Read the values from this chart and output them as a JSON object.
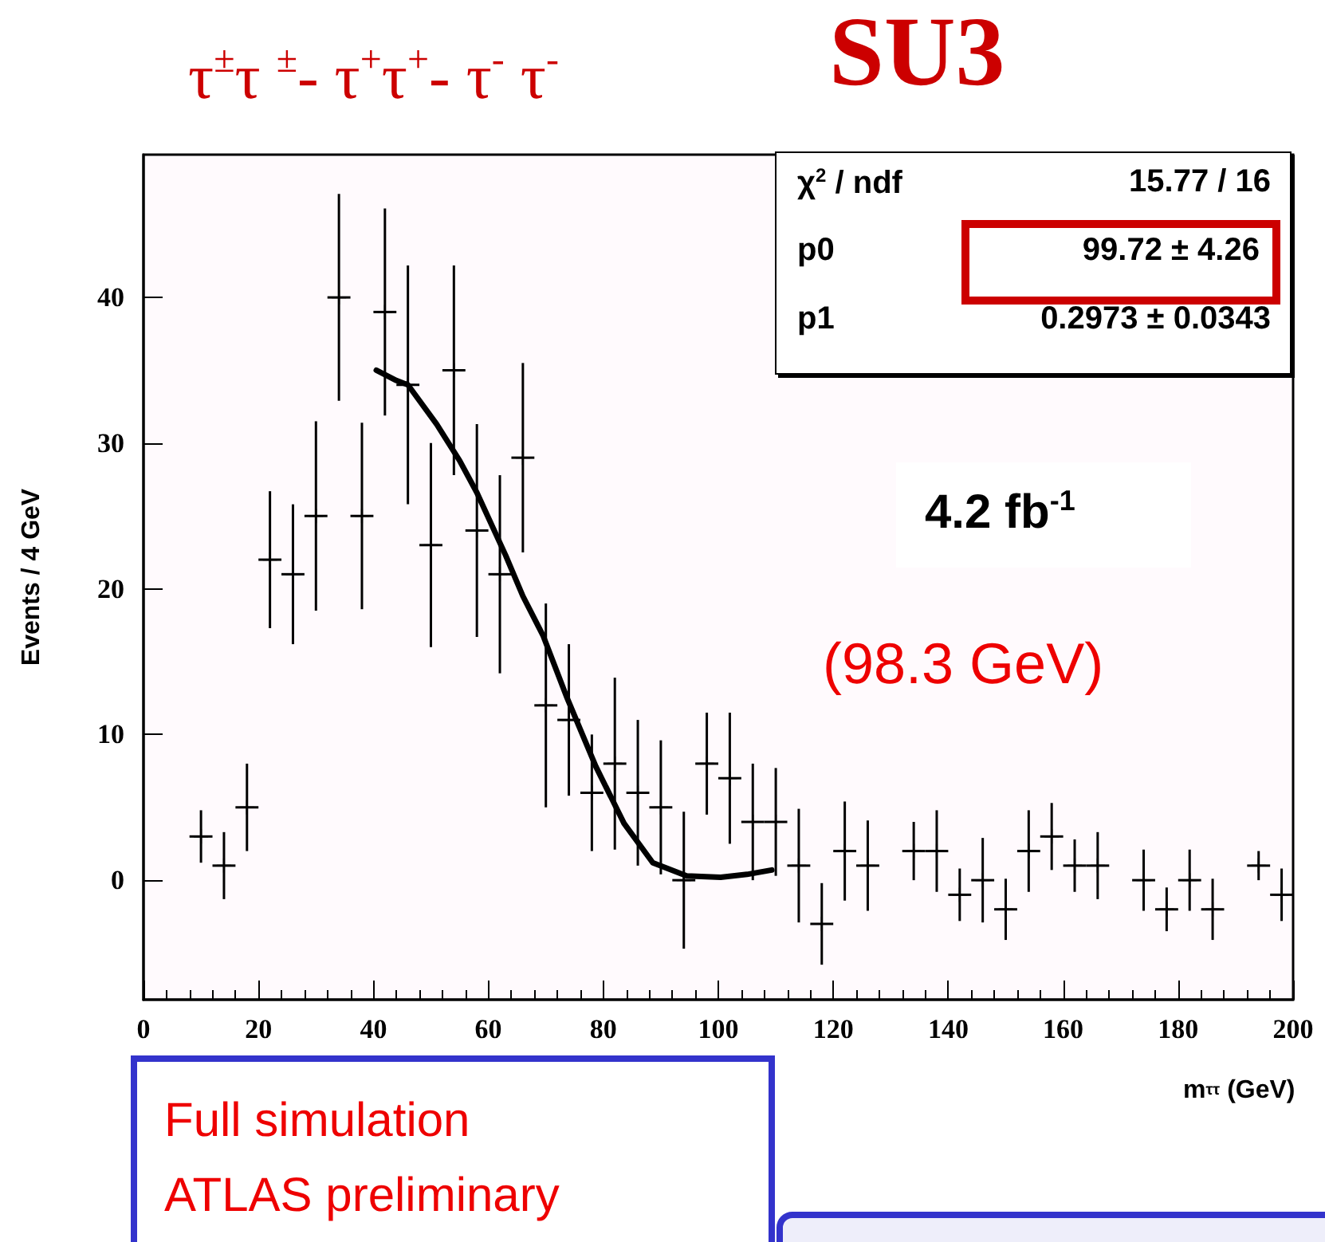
{
  "chart_data": {
    "type": "scatter",
    "title": "τ$^{±}$τ $^{±}$- τ$^{+}$τ$^{+}$- τ$^{-}$ τ$^{-}$",
    "xlabel": "m$_{ττ}$ (GeV)",
    "ylabel": "Events / 4 GeV",
    "xlim": [
      0,
      200
    ],
    "xticks": [
      0,
      20,
      40,
      60,
      80,
      100,
      120,
      140,
      160,
      180,
      200
    ],
    "ylim": [
      -8.2,
      49.8
    ],
    "yticks": [
      0,
      10,
      20,
      30,
      40
    ],
    "annotations": [
      "SU3",
      "χ$^{2}$ / ndf",
      "15.77 / 16",
      "p0",
      "99.72 ± 4.26",
      "p1",
      "0.2973 ± 0.0343",
      "4.2 fb$^{-1}$",
      "(98.3 GeV)",
      "Full simulation",
      "ATLAS preliminary"
    ],
    "series": [
      {
        "color": "#000000",
        "marker": "cross",
        "x": [
          10,
          14,
          18,
          22,
          26,
          30,
          34,
          38,
          42,
          46,
          50,
          54,
          58,
          62,
          66,
          70,
          74,
          78,
          82,
          86,
          90,
          94,
          98,
          102,
          106,
          110,
          114,
          118,
          122,
          126,
          134,
          138,
          142,
          146,
          150,
          154,
          158,
          162,
          166,
          174,
          178,
          182,
          186,
          194,
          198
        ],
        "values": [
          3,
          1,
          5,
          22,
          21,
          25,
          40,
          25,
          39,
          34,
          23,
          35,
          24,
          21,
          29,
          12,
          11,
          6,
          8,
          6,
          5,
          0,
          8,
          7,
          4,
          4,
          1,
          -3,
          2,
          1,
          2,
          2,
          -1,
          0,
          -2,
          2,
          3,
          1,
          1,
          0,
          -2,
          0,
          -2,
          1,
          -1
        ],
        "errors": [
          1.8,
          2.3,
          3,
          4.7,
          4.8,
          6.5,
          7.1,
          6.4,
          7.1,
          8.2,
          7,
          7.2,
          7.3,
          6.8,
          6.5,
          7,
          5.2,
          4,
          5.9,
          5,
          4.6,
          4.7,
          3.5,
          4.5,
          4,
          3.7,
          3.9,
          2.8,
          3.4,
          3.1,
          2,
          2.8,
          1.8,
          2.9,
          2.1,
          2.8,
          2.3,
          1.8,
          2.3,
          2.1,
          1.5,
          2.1,
          2.1,
          1,
          1.8
        ],
        "xerrors": [
          2,
          2,
          2,
          2,
          2,
          2,
          2,
          2,
          2,
          2,
          2,
          2,
          2,
          2,
          2,
          2,
          2,
          2,
          2,
          2,
          2,
          2,
          2,
          2,
          2,
          2,
          2,
          2,
          2,
          2,
          2,
          2,
          2,
          2,
          2,
          2,
          2,
          2,
          2,
          2,
          2,
          2,
          2,
          2,
          2
        ]
      },
      {
        "type": "line",
        "color": "#000000",
        "x": [
          40.5,
          44,
          46,
          51,
          55,
          58,
          63,
          66,
          69.5,
          73.7,
          78.7,
          83.6,
          88.6,
          94.5,
          100.4,
          105,
          109.3
        ],
        "values": [
          35,
          34.3,
          34,
          31.3,
          28.8,
          26.6,
          22.3,
          19.5,
          16.8,
          12.5,
          7.8,
          3.9,
          1.2,
          0.3,
          0.2,
          0.4,
          0.7
        ]
      }
    ]
  }
}
